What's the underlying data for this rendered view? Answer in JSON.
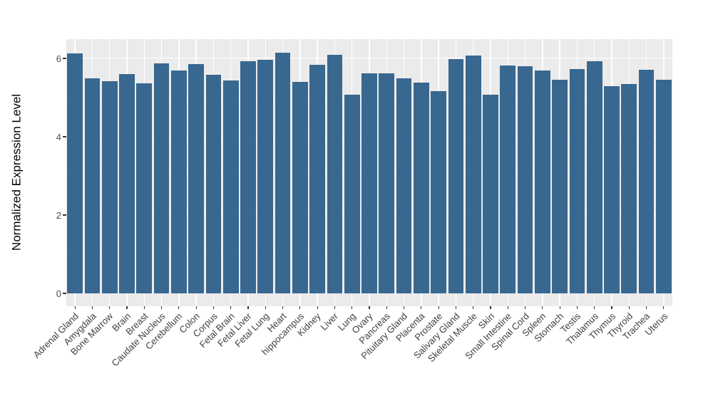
{
  "chart_data": {
    "type": "bar",
    "title": "",
    "xlabel": "",
    "ylabel": "Normalized Expression Level",
    "categories": [
      "Adrenal Gland",
      "Amygdala",
      "Bone Marrow",
      "Brain",
      "Breast",
      "Caudate Nucleus",
      "Cerebellum",
      "Colon",
      "Corpus",
      "Fetal Brain",
      "Fetal Liver",
      "Fetal Lung",
      "Heart",
      "hippocampus",
      "Kidney",
      "Liver",
      "Lung",
      "Ovary",
      "Pancreas",
      "Pituitary Gland",
      "Placenta",
      "Prostate",
      "Salivary Gland",
      "Skeletal Muscle",
      "Skin",
      "Small Intestine",
      "Spinal Cord",
      "Spleen",
      "Stomach",
      "Testis",
      "Thalamus",
      "Thymus",
      "Thyroid",
      "Trachea",
      "Uterus"
    ],
    "values": [
      6.13,
      5.49,
      5.41,
      5.6,
      5.36,
      5.87,
      5.7,
      5.85,
      5.58,
      5.44,
      5.92,
      5.97,
      6.15,
      5.4,
      5.84,
      6.1,
      5.08,
      5.62,
      5.62,
      5.49,
      5.38,
      5.16,
      5.98,
      6.07,
      5.07,
      5.82,
      5.8,
      5.69,
      5.45,
      5.73,
      5.92,
      5.29,
      5.35,
      5.71,
      5.46
    ],
    "yticks": [
      0,
      2,
      4,
      6
    ],
    "yminor": [
      1,
      3,
      5
    ],
    "ylim": [
      -0.33,
      6.49
    ],
    "bar_width_fraction": 0.9,
    "grid": true,
    "legend": false,
    "colors": {
      "bar": "#386890",
      "panel_background": "#EBEBEB",
      "gridline": "#FFFFFF",
      "tick_mark": "#333333",
      "tick_label": "#4D4D4D",
      "axis_title": "#000000",
      "page_background": "#FFFFFF"
    }
  }
}
